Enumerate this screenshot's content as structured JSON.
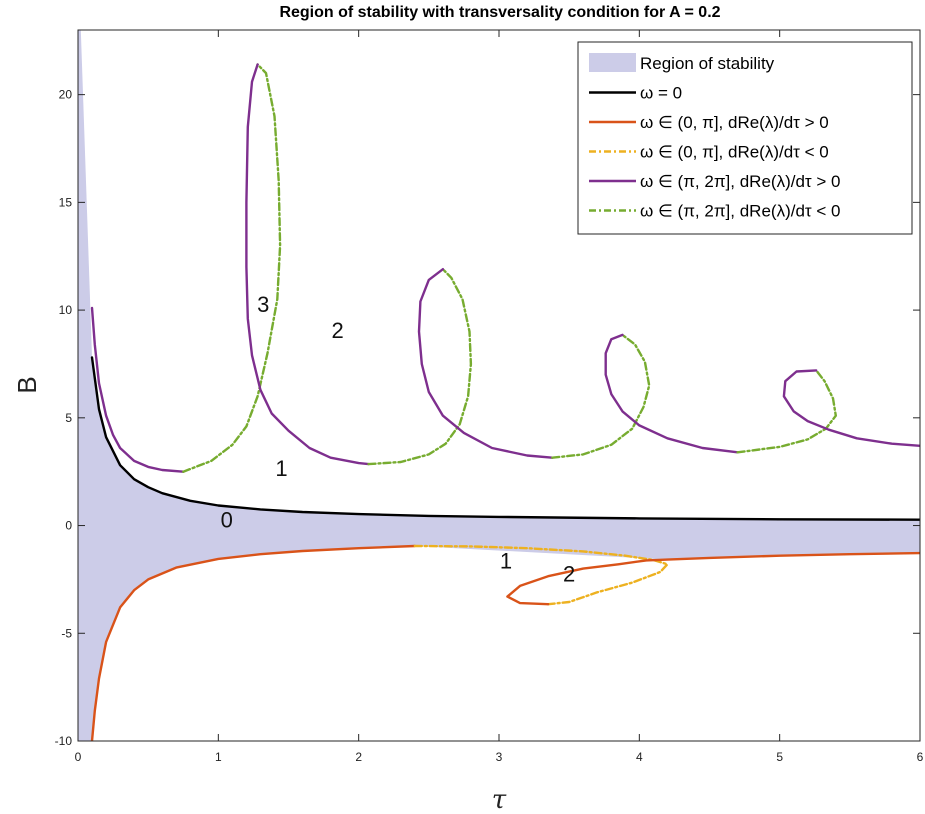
{
  "chart_data": {
    "type": "line",
    "title": "Region of stability with transversality condition for A = 0.2",
    "xlabel": "τ",
    "ylabel": "B",
    "xlim": [
      0,
      6
    ],
    "ylim": [
      -10,
      23
    ],
    "x_ticks": [
      "0",
      "1",
      "2",
      "3",
      "4",
      "5",
      "6"
    ],
    "y_ticks": [
      "-10",
      "-5",
      "0",
      "5",
      "10",
      "15",
      "20"
    ],
    "legend_position": "top-right",
    "legend": [
      "Region of stability",
      "ω = 0",
      "ω ∈ (0, π], dRe(λ)/dτ > 0",
      "ω ∈ (0, π], dRe(λ)/dτ < 0",
      "ω ∈ (π, 2π], dRe(λ)/dτ > 0",
      "ω ∈ (π, 2π], dRe(λ)/dτ < 0"
    ],
    "colors": {
      "region": "#cccce8",
      "omega_zero": "#000000",
      "first_pos": "#d95319",
      "first_neg": "#edb120",
      "second_pos": "#7e2f8e",
      "second_neg": "#77ac30"
    },
    "region_labels": [
      {
        "text": "0",
        "x": 1.06,
        "y": -0.1
      },
      {
        "text": "1",
        "x": 1.45,
        "y": 2.3
      },
      {
        "text": "3",
        "x": 1.32,
        "y": 9.9
      },
      {
        "text": "2",
        "x": 1.85,
        "y": 8.7
      },
      {
        "text": "1",
        "x": 3.05,
        "y": -2.0
      },
      {
        "text": "2",
        "x": 3.5,
        "y": -2.6
      }
    ],
    "region_of_stability": {
      "upper_boundary": "ω = 0 curve",
      "lower_boundary": "first branch (ω ∈ (0, π]) lower curve",
      "top_left": {
        "x": 0.02,
        "y": 23
      }
    },
    "series": [
      {
        "key": "omega_zero",
        "style": "solid",
        "points": [
          [
            0.1,
            7.8
          ],
          [
            0.15,
            5.4
          ],
          [
            0.2,
            4.1
          ],
          [
            0.3,
            2.8
          ],
          [
            0.4,
            2.15
          ],
          [
            0.5,
            1.78
          ],
          [
            0.6,
            1.5
          ],
          [
            0.8,
            1.15
          ],
          [
            1.0,
            0.93
          ],
          [
            1.3,
            0.75
          ],
          [
            1.6,
            0.63
          ],
          [
            2.0,
            0.53
          ],
          [
            2.5,
            0.45
          ],
          [
            3.0,
            0.4
          ],
          [
            4.0,
            0.33
          ],
          [
            5.0,
            0.29
          ],
          [
            6.0,
            0.27
          ]
        ]
      },
      {
        "key": "first_pos",
        "style": "solid",
        "points": [
          [
            0.1,
            -10.0
          ],
          [
            0.12,
            -8.6
          ],
          [
            0.15,
            -7.1
          ],
          [
            0.2,
            -5.4
          ],
          [
            0.3,
            -3.8
          ],
          [
            0.4,
            -3.0
          ],
          [
            0.5,
            -2.5
          ],
          [
            0.7,
            -1.95
          ],
          [
            1.0,
            -1.55
          ],
          [
            1.3,
            -1.33
          ],
          [
            1.6,
            -1.18
          ],
          [
            2.0,
            -1.05
          ],
          [
            2.4,
            -0.95
          ]
        ]
      },
      {
        "key": "first_neg",
        "style": "dashdot",
        "points": [
          [
            2.4,
            -0.95
          ],
          [
            2.8,
            -0.97
          ],
          [
            3.2,
            -1.05
          ],
          [
            3.6,
            -1.2
          ],
          [
            3.9,
            -1.4
          ],
          [
            4.1,
            -1.6
          ],
          [
            4.2,
            -1.8
          ],
          [
            4.15,
            -2.15
          ],
          [
            3.95,
            -2.65
          ],
          [
            3.7,
            -3.1
          ],
          [
            3.5,
            -3.55
          ],
          [
            3.35,
            -3.65
          ]
        ]
      },
      {
        "key": "first_pos",
        "style": "solid",
        "points": [
          [
            3.35,
            -3.65
          ],
          [
            3.15,
            -3.6
          ],
          [
            3.06,
            -3.3
          ],
          [
            3.15,
            -2.8
          ],
          [
            3.35,
            -2.35
          ],
          [
            3.6,
            -2.0
          ],
          [
            3.85,
            -1.8
          ],
          [
            4.05,
            -1.62
          ],
          [
            4.2,
            -1.58
          ],
          [
            4.5,
            -1.5
          ],
          [
            5.0,
            -1.4
          ],
          [
            5.5,
            -1.33
          ],
          [
            6.0,
            -1.28
          ]
        ]
      },
      {
        "key": "second_pos",
        "style": "solid",
        "points": [
          [
            0.1,
            10.1
          ],
          [
            0.12,
            8.4
          ],
          [
            0.15,
            6.6
          ],
          [
            0.2,
            5.1
          ],
          [
            0.25,
            4.2
          ],
          [
            0.3,
            3.6
          ],
          [
            0.4,
            3.0
          ],
          [
            0.5,
            2.72
          ],
          [
            0.6,
            2.58
          ],
          [
            0.75,
            2.5
          ]
        ]
      },
      {
        "key": "second_neg",
        "style": "dashdot",
        "points": [
          [
            0.75,
            2.5
          ],
          [
            0.95,
            3.0
          ],
          [
            1.1,
            3.75
          ],
          [
            1.2,
            4.6
          ],
          [
            1.28,
            6.0
          ],
          [
            1.35,
            8.0
          ],
          [
            1.42,
            10.5
          ],
          [
            1.44,
            13.0
          ],
          [
            1.43,
            16.0
          ],
          [
            1.4,
            19.0
          ],
          [
            1.34,
            21.0
          ],
          [
            1.28,
            21.4
          ]
        ]
      },
      {
        "key": "second_pos",
        "style": "solid",
        "points": [
          [
            1.28,
            21.4
          ],
          [
            1.24,
            20.6
          ],
          [
            1.21,
            18.5
          ],
          [
            1.2,
            15.0
          ],
          [
            1.2,
            12.0
          ],
          [
            1.21,
            9.6
          ],
          [
            1.24,
            7.9
          ],
          [
            1.3,
            6.3
          ],
          [
            1.38,
            5.2
          ],
          [
            1.5,
            4.4
          ],
          [
            1.65,
            3.6
          ],
          [
            1.8,
            3.15
          ],
          [
            2.0,
            2.9
          ],
          [
            2.07,
            2.85
          ]
        ]
      },
      {
        "key": "second_neg",
        "style": "dashdot",
        "points": [
          [
            2.07,
            2.85
          ],
          [
            2.3,
            2.95
          ],
          [
            2.5,
            3.3
          ],
          [
            2.62,
            3.8
          ],
          [
            2.72,
            4.7
          ],
          [
            2.78,
            6.0
          ],
          [
            2.8,
            7.5
          ],
          [
            2.79,
            9.0
          ],
          [
            2.74,
            10.5
          ],
          [
            2.66,
            11.5
          ],
          [
            2.6,
            11.9
          ]
        ]
      },
      {
        "key": "second_pos",
        "style": "solid",
        "points": [
          [
            2.6,
            11.9
          ],
          [
            2.5,
            11.4
          ],
          [
            2.44,
            10.4
          ],
          [
            2.43,
            9.0
          ],
          [
            2.45,
            7.5
          ],
          [
            2.5,
            6.2
          ],
          [
            2.6,
            5.1
          ],
          [
            2.75,
            4.3
          ],
          [
            2.95,
            3.6
          ],
          [
            3.2,
            3.25
          ],
          [
            3.38,
            3.15
          ]
        ]
      },
      {
        "key": "second_neg",
        "style": "dashdot",
        "points": [
          [
            3.38,
            3.15
          ],
          [
            3.6,
            3.3
          ],
          [
            3.8,
            3.75
          ],
          [
            3.95,
            4.5
          ],
          [
            4.03,
            5.5
          ],
          [
            4.07,
            6.5
          ],
          [
            4.04,
            7.6
          ],
          [
            3.97,
            8.4
          ],
          [
            3.88,
            8.85
          ]
        ]
      },
      {
        "key": "second_pos",
        "style": "solid",
        "points": [
          [
            3.88,
            8.85
          ],
          [
            3.8,
            8.65
          ],
          [
            3.76,
            8.0
          ],
          [
            3.76,
            7.0
          ],
          [
            3.8,
            6.1
          ],
          [
            3.88,
            5.3
          ],
          [
            4.0,
            4.65
          ],
          [
            4.2,
            4.05
          ],
          [
            4.45,
            3.6
          ],
          [
            4.7,
            3.4
          ]
        ]
      },
      {
        "key": "second_neg",
        "style": "dashdot",
        "points": [
          [
            4.7,
            3.4
          ],
          [
            5.0,
            3.65
          ],
          [
            5.2,
            4.0
          ],
          [
            5.33,
            4.5
          ],
          [
            5.4,
            5.1
          ],
          [
            5.38,
            5.9
          ],
          [
            5.32,
            6.7
          ],
          [
            5.26,
            7.2
          ]
        ]
      },
      {
        "key": "second_pos",
        "style": "solid",
        "points": [
          [
            5.26,
            7.2
          ],
          [
            5.12,
            7.15
          ],
          [
            5.04,
            6.7
          ],
          [
            5.03,
            6.0
          ],
          [
            5.1,
            5.3
          ],
          [
            5.2,
            4.85
          ],
          [
            5.35,
            4.45
          ],
          [
            5.55,
            4.05
          ],
          [
            5.8,
            3.8
          ],
          [
            6.0,
            3.7
          ]
        ]
      }
    ]
  }
}
